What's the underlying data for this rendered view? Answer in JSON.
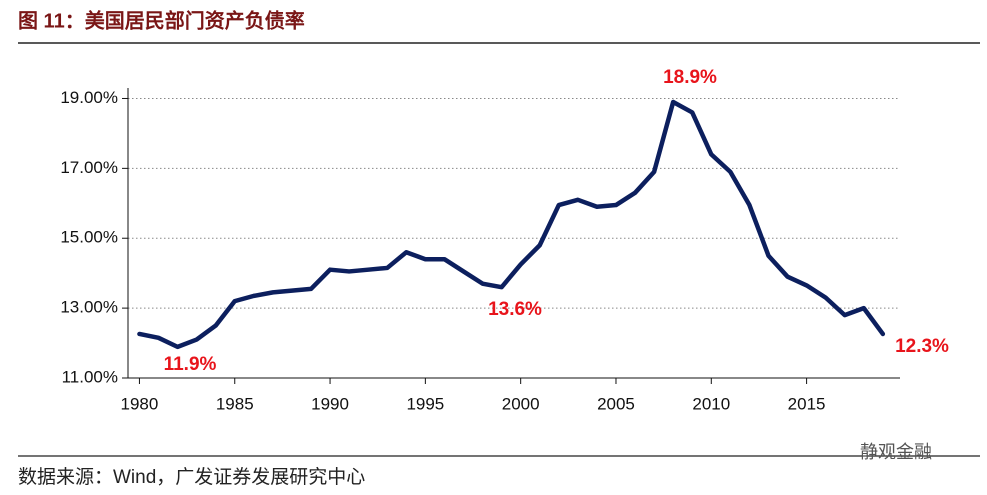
{
  "chart_data": {
    "type": "line",
    "title": "图 11：美国居民部门资产负债率",
    "source": "数据来源：Wind，广发证券发展研究中心",
    "watermark": "静观金融",
    "x": [
      1980,
      1981,
      1982,
      1983,
      1984,
      1985,
      1986,
      1987,
      1988,
      1989,
      1990,
      1991,
      1992,
      1993,
      1994,
      1995,
      1996,
      1997,
      1998,
      1999,
      2000,
      2001,
      2002,
      2003,
      2004,
      2005,
      2006,
      2007,
      2008,
      2009,
      2010,
      2011,
      2012,
      2013,
      2014,
      2015,
      2016,
      2017,
      2018,
      2019
    ],
    "series": [
      {
        "color": "#0c1f5e",
        "values": [
          12.26,
          12.15,
          11.89,
          12.1,
          12.5,
          13.2,
          13.35,
          13.45,
          13.5,
          13.55,
          14.1,
          14.05,
          14.1,
          14.15,
          14.6,
          14.4,
          14.4,
          14.05,
          13.7,
          13.6,
          14.25,
          14.8,
          15.95,
          16.1,
          15.9,
          15.95,
          16.3,
          16.9,
          18.9,
          18.6,
          17.4,
          16.9,
          15.95,
          14.5,
          13.9,
          13.65,
          13.3,
          12.8,
          13.0,
          12.26
        ]
      }
    ],
    "annotations": [
      "11.9%",
      "13.6%",
      "18.9%",
      "12.3%"
    ],
    "annotation_color": "#e8141b",
    "xlim": [
      1979.4,
      2019.9
    ],
    "xticks": [
      1980,
      1985,
      1990,
      1995,
      2000,
      2005,
      2010,
      2015
    ],
    "ylim": [
      11,
      19.3
    ],
    "yticks": [
      {
        "value": 11,
        "label": "11.00%"
      },
      {
        "value": 13,
        "label": "13.00%"
      },
      {
        "value": 15,
        "label": "15.00%"
      },
      {
        "value": 17,
        "label": "17.00%"
      },
      {
        "value": 19,
        "label": "19.00%"
      }
    ],
    "grid": true
  }
}
